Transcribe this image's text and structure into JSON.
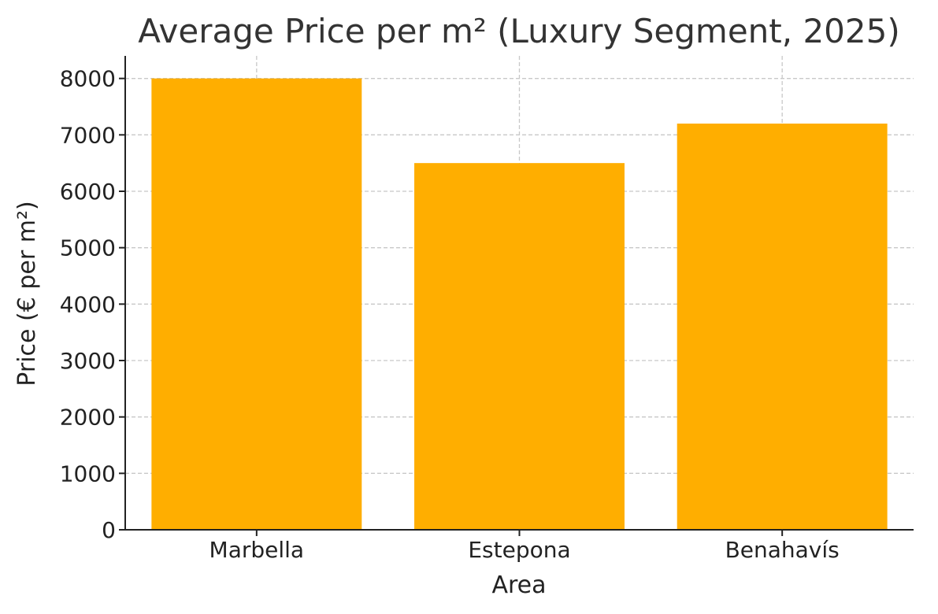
{
  "chart_data": {
    "type": "bar",
    "title": "Average Price per m² (Luxury Segment, 2025)",
    "xlabel": "Area",
    "ylabel": "Price (€ per m²)",
    "categories": [
      "Marbella",
      "Estepona",
      "Benahavís"
    ],
    "values": [
      8000,
      6500,
      7200
    ],
    "ylim": [
      0,
      8400
    ],
    "yticks": [
      0,
      1000,
      2000,
      3000,
      4000,
      5000,
      6000,
      7000,
      8000
    ],
    "grid": true,
    "bar_color": "#FFAE00"
  }
}
